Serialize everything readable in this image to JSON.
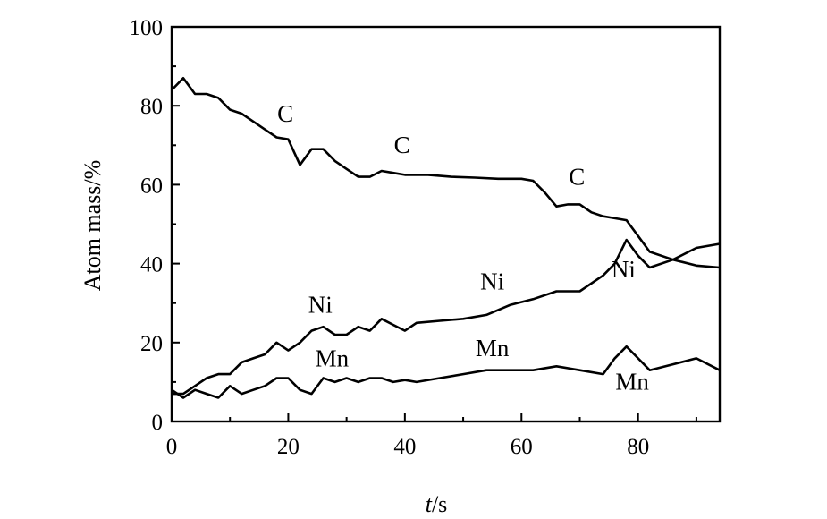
{
  "chart_data": {
    "type": "line",
    "xlabel_italic": "t",
    "xlabel_unit": "/s",
    "ylabel": "Atom mass/%",
    "xlim": [
      0,
      94
    ],
    "ylim": [
      0,
      100
    ],
    "xticks": [
      0,
      20,
      40,
      60,
      80
    ],
    "yticks": [
      0,
      20,
      40,
      60,
      80,
      100
    ],
    "line_color": "#000000",
    "series": [
      {
        "name": "C",
        "x": [
          0,
          2,
          4,
          6,
          8,
          10,
          12,
          14,
          16,
          18,
          20,
          22,
          24,
          26,
          28,
          30,
          32,
          34,
          36,
          38,
          40,
          44,
          48,
          52,
          56,
          60,
          62,
          64,
          66,
          68,
          70,
          72,
          74,
          76,
          78,
          80,
          82,
          86,
          90,
          94
        ],
        "y": [
          84,
          87,
          83,
          83,
          82,
          79,
          78,
          76,
          74,
          72,
          71.5,
          65,
          69,
          69,
          66,
          64,
          62,
          62,
          63.5,
          63,
          62.5,
          62.5,
          62,
          61.8,
          61.5,
          61.5,
          61,
          58,
          54.5,
          55,
          55,
          53,
          52,
          51.5,
          51,
          47,
          43,
          41,
          39.5,
          39
        ]
      },
      {
        "name": "Ni",
        "x": [
          0,
          2,
          4,
          6,
          8,
          10,
          12,
          14,
          16,
          18,
          20,
          22,
          24,
          26,
          28,
          30,
          32,
          34,
          36,
          38,
          40,
          42,
          46,
          50,
          54,
          58,
          62,
          66,
          70,
          74,
          76,
          78,
          80,
          82,
          86,
          90,
          94
        ],
        "y": [
          7,
          7,
          9,
          11,
          12,
          12,
          15,
          16,
          17,
          20,
          18,
          20,
          23,
          24,
          22,
          22,
          24,
          23,
          26,
          24.5,
          23,
          25,
          25.5,
          26,
          27,
          29.5,
          31,
          33,
          33,
          37,
          40,
          46,
          42,
          39,
          41,
          44,
          45
        ]
      },
      {
        "name": "Mn",
        "x": [
          0,
          2,
          4,
          6,
          8,
          10,
          12,
          14,
          16,
          18,
          20,
          22,
          24,
          26,
          28,
          30,
          32,
          34,
          36,
          38,
          40,
          42,
          46,
          50,
          54,
          58,
          62,
          66,
          70,
          74,
          76,
          78,
          80,
          82,
          86,
          90,
          94
        ],
        "y": [
          8,
          6,
          8,
          7,
          6,
          9,
          7,
          8,
          9,
          11,
          11,
          8,
          7,
          11,
          10,
          11,
          10,
          11,
          11,
          10,
          10.5,
          10,
          11,
          12,
          13,
          13,
          13,
          14,
          13,
          12,
          16,
          19,
          16,
          13,
          14.5,
          16,
          13
        ]
      }
    ],
    "annotations": [
      {
        "text": "C",
        "x": 19.5,
        "y": 76
      },
      {
        "text": "C",
        "x": 39.5,
        "y": 68
      },
      {
        "text": "C",
        "x": 69.5,
        "y": 60
      },
      {
        "text": "Ni",
        "x": 25.5,
        "y": 27.5
      },
      {
        "text": "Ni",
        "x": 55,
        "y": 33.5
      },
      {
        "text": "Ni",
        "x": 77.5,
        "y": 36.5
      },
      {
        "text": "Mn",
        "x": 27.5,
        "y": 14
      },
      {
        "text": "Mn",
        "x": 55,
        "y": 16.5
      },
      {
        "text": "Mn",
        "x": 79,
        "y": 8
      }
    ]
  }
}
